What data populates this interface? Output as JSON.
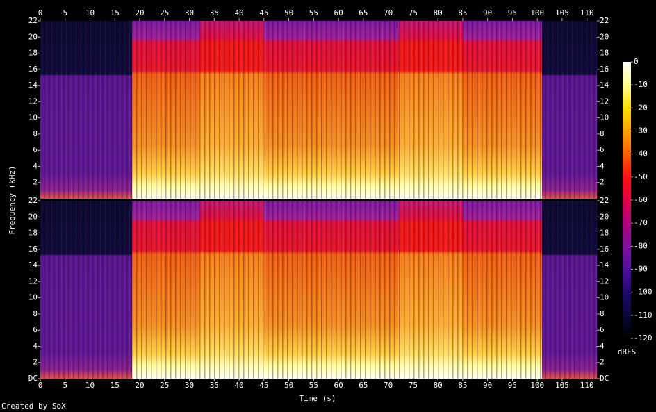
{
  "chart_data": {
    "type": "spectrogram",
    "xlabel": "Time (s)",
    "ylabel": "Frequency (kHz)",
    "footer": "Created by SoX",
    "xlim": [
      0,
      112
    ],
    "xticks": [
      0,
      5,
      10,
      15,
      20,
      25,
      30,
      35,
      40,
      45,
      50,
      55,
      60,
      65,
      70,
      75,
      80,
      85,
      90,
      95,
      100,
      105,
      110
    ],
    "ylim": [
      0,
      22
    ],
    "yticks": [
      {
        "value": 0,
        "label": "DC"
      },
      2,
      4,
      6,
      8,
      10,
      12,
      14,
      16,
      18,
      20,
      22
    ],
    "colorbar": {
      "label": "dBFS",
      "lim": [
        -120,
        0
      ],
      "ticks": [
        0,
        -10,
        -20,
        -30,
        -40,
        -50,
        -60,
        -70,
        -80,
        -90,
        -100,
        -110,
        -120
      ]
    }
  }
}
